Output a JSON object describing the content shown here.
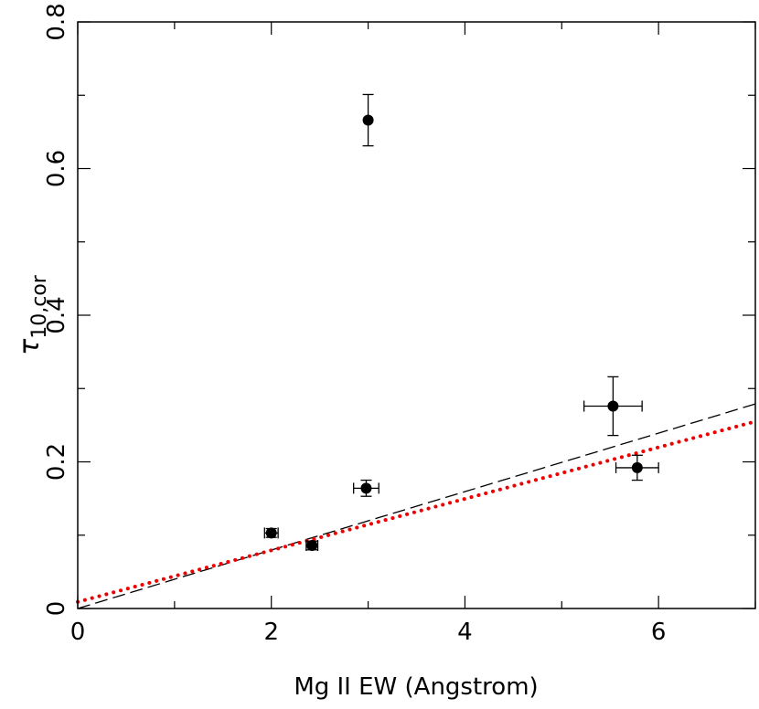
{
  "chart_data": {
    "type": "scatter",
    "title": "",
    "xlabel": "Mg II EW (Angstrom)",
    "ylabel_symbol": "τ",
    "ylabel_subscript": "10,cor",
    "xlim": [
      0,
      7
    ],
    "ylim": [
      0,
      0.8
    ],
    "x_ticks": [
      0,
      2,
      4,
      6
    ],
    "x_tick_labels": [
      "0",
      "2",
      "4",
      "6"
    ],
    "y_ticks": [
      0,
      0.2,
      0.4,
      0.6,
      0.8
    ],
    "y_tick_labels": [
      "0",
      "0.2",
      "0.4",
      "0.6",
      "0.8"
    ],
    "grid": false,
    "points": [
      {
        "x": 2.0,
        "y": 0.103,
        "xerr": 0.07,
        "yerr": 0.006
      },
      {
        "x": 2.42,
        "y": 0.086,
        "xerr": 0.06,
        "yerr": 0.006
      },
      {
        "x": 2.98,
        "y": 0.164,
        "xerr": 0.13,
        "yerr": 0.011
      },
      {
        "x": 3.0,
        "y": 0.666,
        "xerr": 0.0,
        "yerr": 0.035
      },
      {
        "x": 5.53,
        "y": 0.276,
        "xerr": 0.3,
        "yerr": 0.04
      },
      {
        "x": 5.78,
        "y": 0.192,
        "xerr": 0.22,
        "yerr": 0.017
      }
    ],
    "fits": [
      {
        "style": "dashed",
        "color": "#000000",
        "x": [
          0,
          7
        ],
        "y": [
          0.0,
          0.279
        ]
      },
      {
        "style": "dotted",
        "color": "#ee0000",
        "x": [
          0,
          7
        ],
        "y": [
          0.009,
          0.255
        ]
      }
    ]
  }
}
